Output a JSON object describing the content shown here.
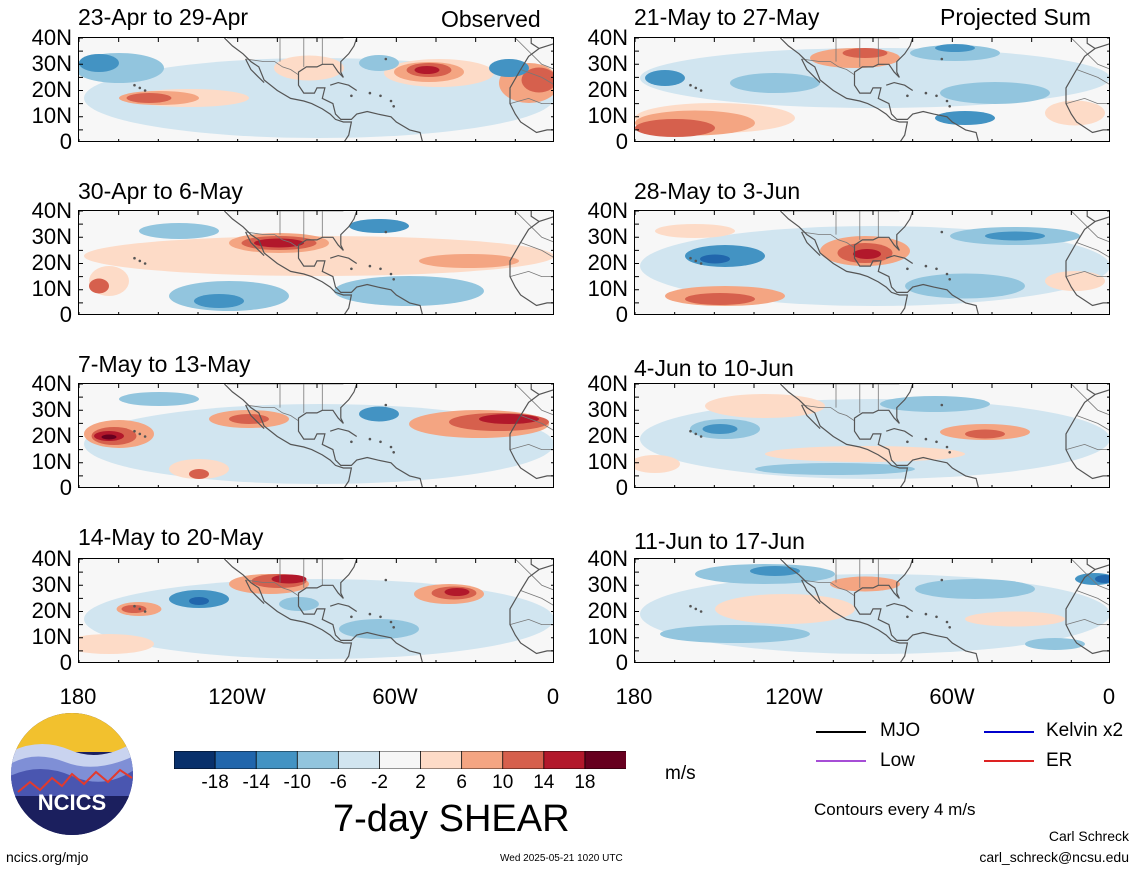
{
  "header": {
    "observed_label": "Observed",
    "projected_label": "Projected Sum"
  },
  "observed_panels": [
    {
      "title": "23-Apr to 29-Apr"
    },
    {
      "title": "30-Apr to 6-May"
    },
    {
      "title": "7-May to 13-May"
    },
    {
      "title": "14-May to 20-May"
    }
  ],
  "projected_panels": [
    {
      "title": "21-May to 27-May"
    },
    {
      "title": "28-May to 3-Jun"
    },
    {
      "title": "4-Jun to 10-Jun"
    },
    {
      "title": "11-Jun to 17-Jun"
    }
  ],
  "lat_labels": [
    "40N",
    "30N",
    "20N",
    "10N",
    "0"
  ],
  "lon_labels": [
    "180",
    "120W",
    "60W",
    "0"
  ],
  "colorbar": {
    "ticks": [
      "-18",
      "-14",
      "-10",
      "-6",
      "-2",
      "2",
      "6",
      "10",
      "14",
      "18"
    ],
    "colors": [
      "#08306b",
      "#2166ac",
      "#4393c3",
      "#92c5de",
      "#d1e5f0",
      "#f7f7f7",
      "#fddbc7",
      "#f4a582",
      "#d6604d",
      "#b2182b",
      "#67001f"
    ],
    "units": "m/s",
    "title": "7-day SHEAR"
  },
  "legend": {
    "items": [
      {
        "label": "MJO",
        "color": "#000000"
      },
      {
        "label": "Kelvin x2",
        "color": "#0000cc"
      },
      {
        "label": "Low",
        "color": "#a64dd6"
      },
      {
        "label": "ER",
        "color": "#dd2222"
      }
    ],
    "contours_note": "Contours every 4 m/s"
  },
  "footer": {
    "site": "ncics.org/mjo",
    "timestamp": "Wed 2025-05-21 1020 UTC",
    "author": "Carl Schreck",
    "email": "carl_schreck@ncsu.edu",
    "logo_text": "NCICS"
  }
}
